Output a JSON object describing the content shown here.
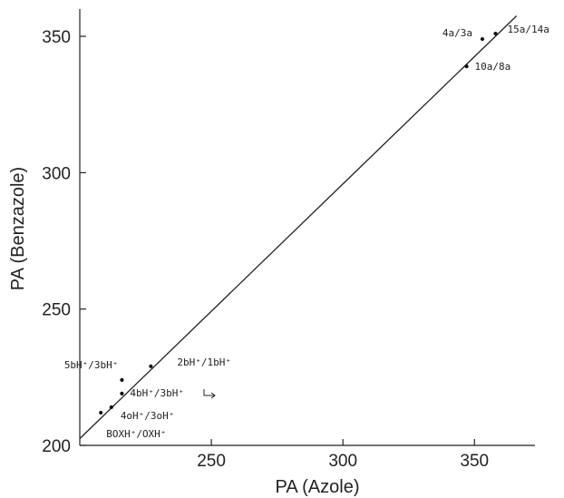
{
  "chart_data": {
    "type": "scatter",
    "title": "",
    "xlabel": "PA (Azole)",
    "ylabel": "PA (Benzazole)",
    "xlim": [
      200,
      373
    ],
    "ylim": [
      200,
      360
    ],
    "xticks": [
      250,
      300,
      350
    ],
    "yticks": [
      200,
      250,
      300,
      350
    ],
    "xtick_labels": [
      "250",
      "300",
      "350"
    ],
    "ytick_labels": [
      "200",
      "250",
      "300",
      "350"
    ],
    "grid": false,
    "fit_line": {
      "x": [
        200,
        366
      ],
      "y": [
        202.5,
        357.5
      ]
    },
    "points": [
      {
        "x": 208,
        "y": 212,
        "label": "BOXH⁺/OXH⁺"
      },
      {
        "x": 212,
        "y": 214,
        "label": "4oH⁺/3oH⁺"
      },
      {
        "x": 216,
        "y": 219,
        "label": "4bH⁺/3bH⁺"
      },
      {
        "x": 216,
        "y": 224,
        "label": "5bH⁺/3bH⁺"
      },
      {
        "x": 227,
        "y": 229,
        "label": "2bH⁺/1bH⁺"
      },
      {
        "x": 347,
        "y": 339,
        "label": "10a/8a"
      },
      {
        "x": 353,
        "y": 349,
        "label": "4a/3a"
      },
      {
        "x": 358,
        "y": 351,
        "label": "15a/14a"
      }
    ]
  }
}
